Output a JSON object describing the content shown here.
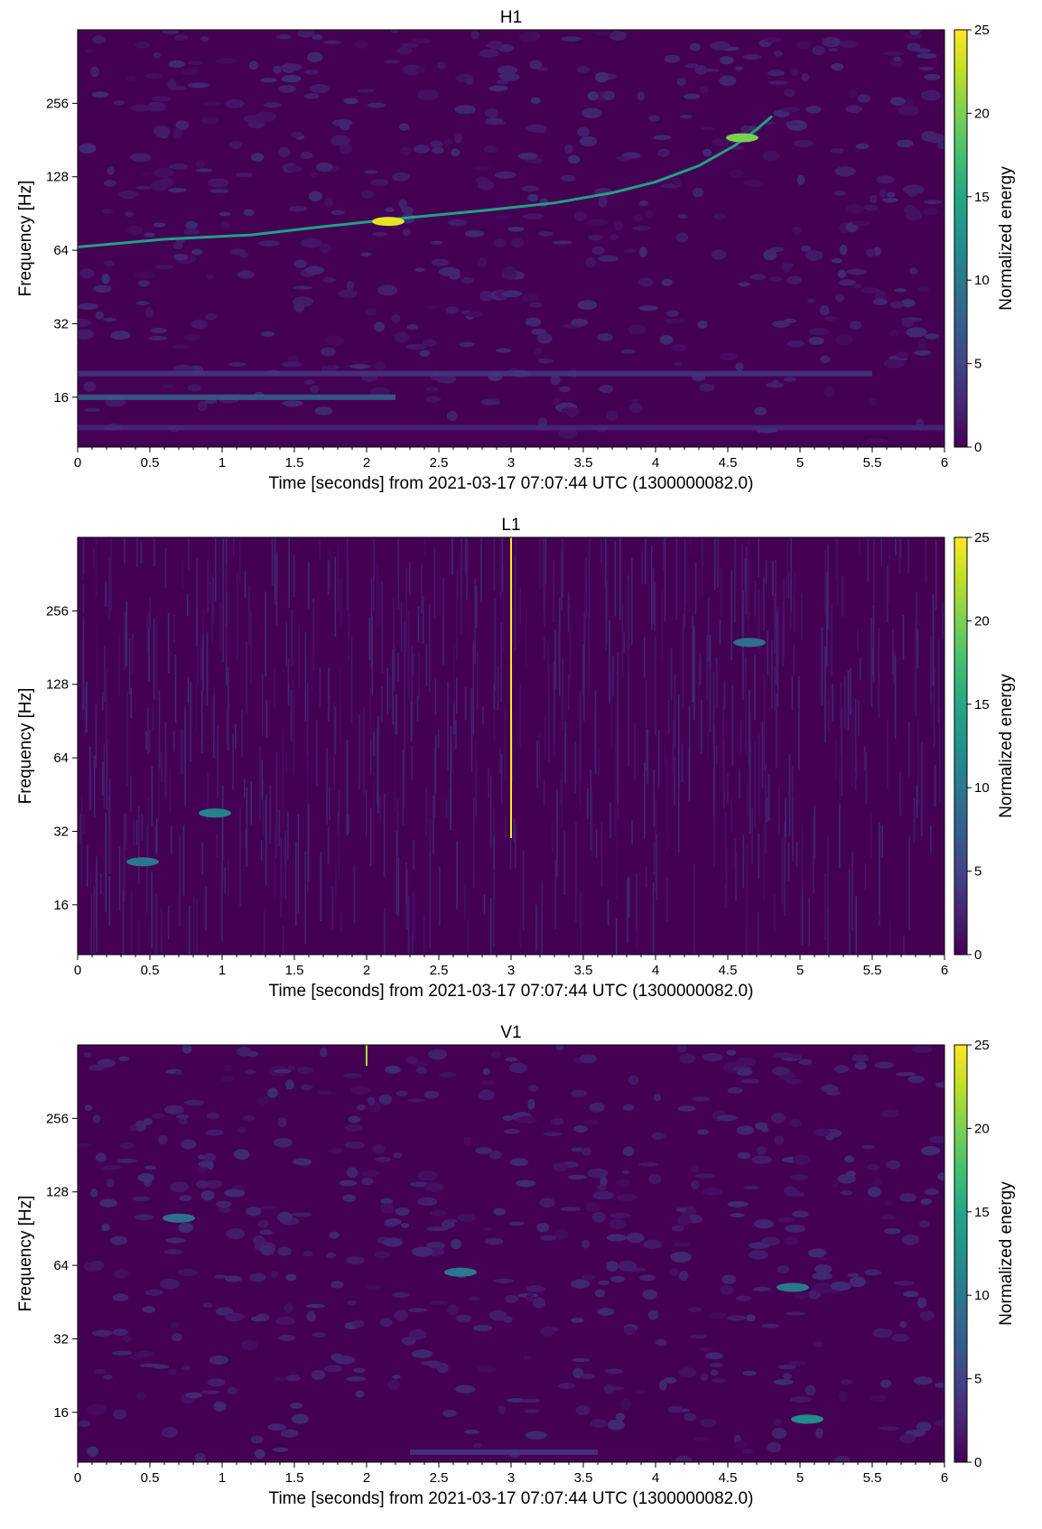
{
  "chart_data": [
    {
      "type": "heatmap",
      "title": "H1",
      "xlabel": "Time [seconds] from 2021-03-17 07:07:44 UTC (1300000082.0)",
      "ylabel": "Frequency [Hz]",
      "xlim": [
        0,
        6
      ],
      "ylim": [
        10,
        512
      ],
      "yscale": "log2",
      "x_ticks": [
        0,
        0.5,
        1,
        1.5,
        2,
        2.5,
        3,
        3.5,
        4,
        4.5,
        5,
        5.5,
        6
      ],
      "x_tick_labels": [
        "0",
        "0.5",
        "1",
        "1.5",
        "2",
        "2.5",
        "3",
        "3.5",
        "4",
        "4.5",
        "5",
        "5.5",
        "6"
      ],
      "y_ticks": [
        16,
        32,
        64,
        128,
        256
      ],
      "y_tick_labels": [
        "16",
        "32",
        "64",
        "128",
        "256"
      ],
      "colorbar": {
        "label": "Normalized energy",
        "min": 0,
        "max": 25,
        "ticks": [
          0,
          5,
          10,
          15,
          20,
          25
        ],
        "tick_labels": [
          "0",
          "5",
          "10",
          "15",
          "20",
          "25"
        ],
        "colormap": "viridis"
      },
      "features": [
        {
          "kind": "chirp",
          "points": [
            [
              0.0,
              66
            ],
            [
              0.6,
              71
            ],
            [
              1.2,
              74
            ],
            [
              1.7,
              80
            ],
            [
              2.2,
              86
            ],
            [
              2.8,
              93
            ],
            [
              3.3,
              100
            ],
            [
              3.7,
              110
            ],
            [
              4.0,
              122
            ],
            [
              4.3,
              142
            ],
            [
              4.55,
              172
            ],
            [
              4.7,
              200
            ],
            [
              4.8,
              225
            ]
          ],
          "energy": 14
        },
        {
          "kind": "blob",
          "t": 2.15,
          "f": 84,
          "energy": 24
        },
        {
          "kind": "blob",
          "t": 4.6,
          "f": 185,
          "energy": 20
        },
        {
          "kind": "band",
          "f": 16,
          "t0": 0.0,
          "t1": 2.2,
          "energy": 8
        },
        {
          "kind": "band",
          "f": 20,
          "t0": 0.0,
          "t1": 5.5,
          "energy": 4
        },
        {
          "kind": "band",
          "f": 12,
          "t0": 0.0,
          "t1": 6.0,
          "energy": 3
        }
      ]
    },
    {
      "type": "heatmap",
      "title": "L1",
      "xlabel": "Time [seconds] from 2021-03-17 07:07:44 UTC (1300000082.0)",
      "ylabel": "Frequency [Hz]",
      "xlim": [
        0,
        6
      ],
      "ylim": [
        10,
        512
      ],
      "yscale": "log2",
      "x_ticks": [
        0,
        0.5,
        1,
        1.5,
        2,
        2.5,
        3,
        3.5,
        4,
        4.5,
        5,
        5.5,
        6
      ],
      "x_tick_labels": [
        "0",
        "0.5",
        "1",
        "1.5",
        "2",
        "2.5",
        "3",
        "3.5",
        "4",
        "4.5",
        "5",
        "5.5",
        "6"
      ],
      "y_ticks": [
        16,
        32,
        64,
        128,
        256
      ],
      "y_tick_labels": [
        "16",
        "32",
        "64",
        "128",
        "256"
      ],
      "colorbar": {
        "label": "Normalized energy",
        "min": 0,
        "max": 25,
        "ticks": [
          0,
          5,
          10,
          15,
          20,
          25
        ],
        "tick_labels": [
          "0",
          "5",
          "10",
          "15",
          "20",
          "25"
        ],
        "colormap": "viridis"
      },
      "features": [
        {
          "kind": "glitch",
          "t": 3.0,
          "f0": 30,
          "f1": 512,
          "energy": 25
        },
        {
          "kind": "blob",
          "t": 0.95,
          "f": 38,
          "energy": 11
        },
        {
          "kind": "blob",
          "t": 0.45,
          "f": 24,
          "energy": 10
        },
        {
          "kind": "blob",
          "t": 4.65,
          "f": 190,
          "energy": 9
        }
      ]
    },
    {
      "type": "heatmap",
      "title": "V1",
      "xlabel": "Time [seconds] from 2021-03-17 07:07:44 UTC (1300000082.0)",
      "ylabel": "Frequency [Hz]",
      "xlim": [
        0,
        6
      ],
      "ylim": [
        10,
        512
      ],
      "yscale": "log2",
      "x_ticks": [
        0,
        0.5,
        1,
        1.5,
        2,
        2.5,
        3,
        3.5,
        4,
        4.5,
        5,
        5.5,
        6
      ],
      "x_tick_labels": [
        "0",
        "0.5",
        "1",
        "1.5",
        "2",
        "2.5",
        "3",
        "3.5",
        "4",
        "4.5",
        "5",
        "5.5",
        "6"
      ],
      "y_ticks": [
        16,
        32,
        64,
        128,
        256
      ],
      "y_tick_labels": [
        "16",
        "32",
        "64",
        "128",
        "256"
      ],
      "colorbar": {
        "label": "Normalized energy",
        "min": 0,
        "max": 25,
        "ticks": [
          0,
          5,
          10,
          15,
          20,
          25
        ],
        "tick_labels": [
          "0",
          "5",
          "10",
          "15",
          "20",
          "25"
        ],
        "colormap": "viridis"
      },
      "features": [
        {
          "kind": "glitch",
          "t": 2.0,
          "f0": 420,
          "f1": 512,
          "energy": 22
        },
        {
          "kind": "blob",
          "t": 5.05,
          "f": 15,
          "energy": 12
        },
        {
          "kind": "blob",
          "t": 4.95,
          "f": 52,
          "energy": 10
        },
        {
          "kind": "blob",
          "t": 2.65,
          "f": 60,
          "energy": 10
        },
        {
          "kind": "blob",
          "t": 0.7,
          "f": 100,
          "energy": 9
        },
        {
          "kind": "band",
          "f": 11,
          "t0": 2.3,
          "t1": 3.6,
          "energy": 4
        }
      ]
    }
  ],
  "colors": {
    "viridis": [
      "#440154",
      "#482475",
      "#414487",
      "#355f8d",
      "#2a788e",
      "#21918c",
      "#22a884",
      "#44bf70",
      "#7ad151",
      "#bddf26",
      "#fde725"
    ]
  }
}
